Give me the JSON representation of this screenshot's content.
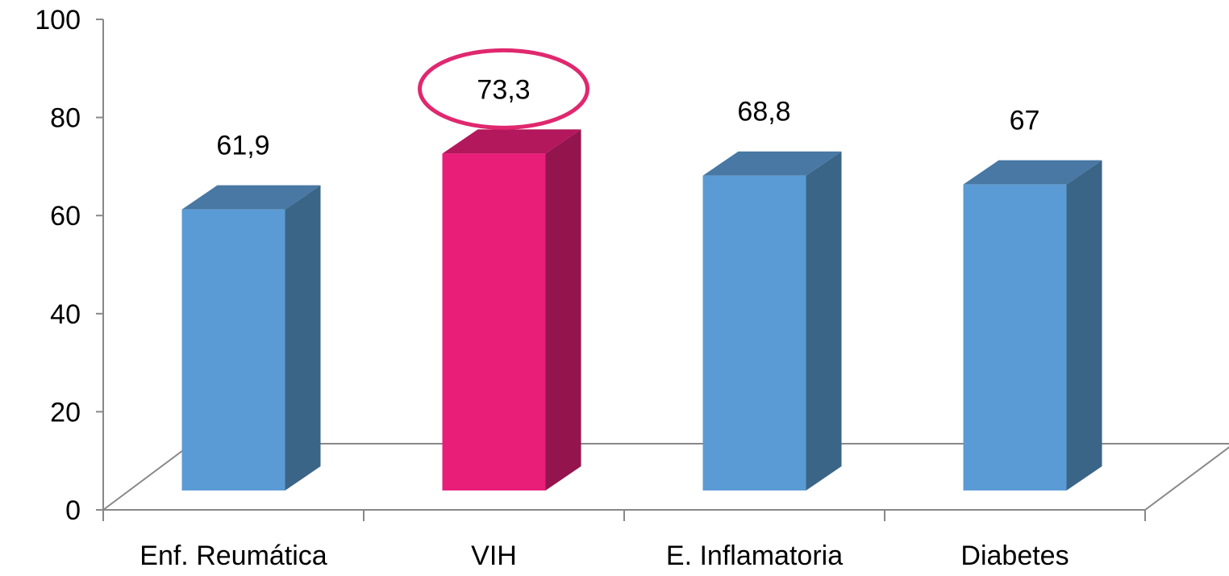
{
  "chart_data": {
    "type": "bar",
    "categories": [
      "Enf. Reumática",
      "VIH",
      "E. Inflamatoria",
      "Diabetes"
    ],
    "values": [
      61.9,
      73.3,
      68.8,
      67
    ],
    "data_labels": [
      "61,9",
      "73,3",
      "68,8",
      "67"
    ],
    "yticks": [
      "0",
      "20",
      "40",
      "60",
      "80",
      "100"
    ],
    "ylim": [
      0,
      100
    ],
    "highlighted_category": "VIH",
    "colors": {
      "bar_front": "#5B9BD5",
      "bar_side": "#3B6587",
      "bar_top": "#4878A3",
      "highlight_front": "#E91E79",
      "highlight_side": "#94144D",
      "highlight_top": "#B3175C",
      "highlight_ring": "#E0286F",
      "axis": "#888888"
    },
    "title": "",
    "xlabel": "",
    "ylabel": ""
  }
}
